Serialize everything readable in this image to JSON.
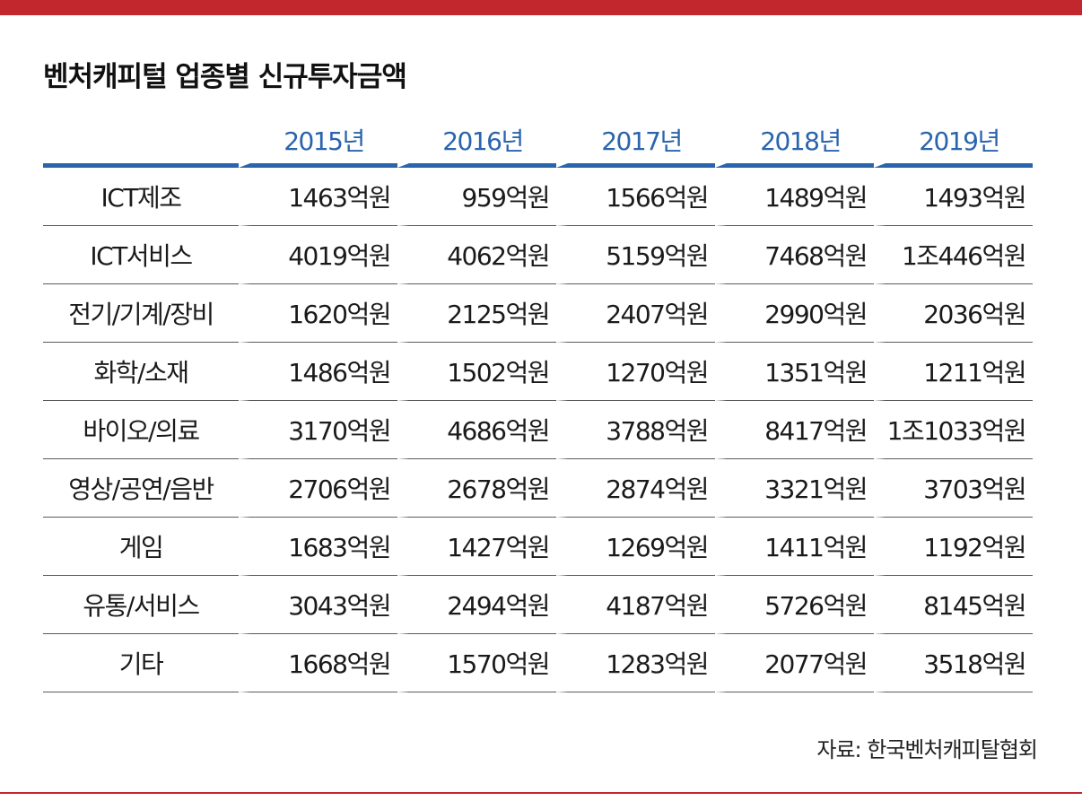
{
  "title": "벤처캐피털 업종별 신규투자금액",
  "source": "자료: 한국벤처캐피탈협회",
  "colors": {
    "accent_red": "#c1272d",
    "header_blue": "#2a64ad"
  },
  "chart_data": {
    "type": "table",
    "title": "벤처캐피털 업종별 신규투자금액",
    "columns": [
      "2015년",
      "2016년",
      "2017년",
      "2018년",
      "2019년"
    ],
    "rows": [
      {
        "category": "ICT제조",
        "values": [
          "1463억원",
          "959억원",
          "1566억원",
          "1489억원",
          "1493억원"
        ]
      },
      {
        "category": "ICT서비스",
        "values": [
          "4019억원",
          "4062억원",
          "5159억원",
          "7468억원",
          "1조446억원"
        ]
      },
      {
        "category": "전기/기계/장비",
        "values": [
          "1620억원",
          "2125억원",
          "2407억원",
          "2990억원",
          "2036억원"
        ]
      },
      {
        "category": "화학/소재",
        "values": [
          "1486억원",
          "1502억원",
          "1270억원",
          "1351억원",
          "1211억원"
        ]
      },
      {
        "category": "바이오/의료",
        "values": [
          "3170억원",
          "4686억원",
          "3788억원",
          "8417억원",
          "1조1033억원"
        ]
      },
      {
        "category": "영상/공연/음반",
        "values": [
          "2706억원",
          "2678억원",
          "2874억원",
          "3321억원",
          "3703억원"
        ]
      },
      {
        "category": "게임",
        "values": [
          "1683억원",
          "1427억원",
          "1269억원",
          "1411억원",
          "1192억원"
        ]
      },
      {
        "category": "유통/서비스",
        "values": [
          "3043억원",
          "2494억원",
          "4187억원",
          "5726억원",
          "8145억원"
        ]
      },
      {
        "category": "기타",
        "values": [
          "1668억원",
          "1570억원",
          "1283억원",
          "2077억원",
          "3518억원"
        ]
      }
    ]
  }
}
